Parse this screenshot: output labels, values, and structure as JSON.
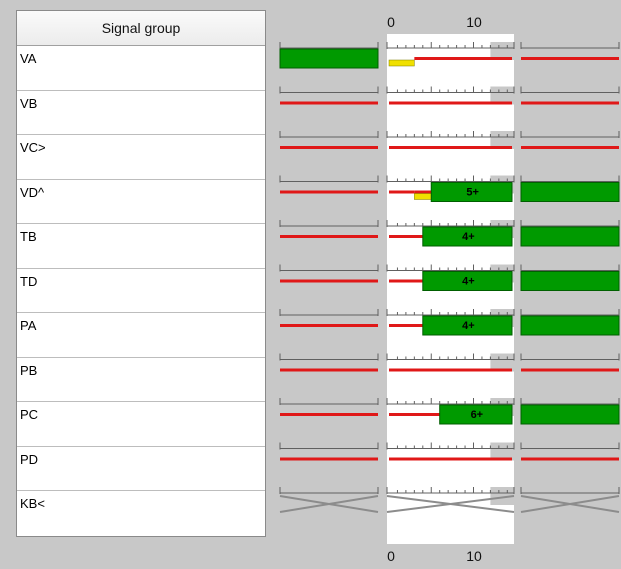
{
  "header": {
    "title": "Signal group"
  },
  "axis": {
    "top_ticks": [
      "0",
      "10"
    ],
    "bottom_ticks": [
      "0",
      "10"
    ]
  },
  "colors": {
    "green": "#009a00",
    "red": "#e01818",
    "yellow": "#f0e000",
    "grey_shade": "#c8c8c8",
    "cross": "#8c8c8c"
  },
  "signal_groups": [
    {
      "name": "VA",
      "left": "green",
      "mid": [
        {
          "kind": "yellow",
          "from": 0,
          "to": 3
        },
        {
          "kind": "red",
          "from": 3,
          "to": 15
        }
      ],
      "mid_label": "",
      "right": "red"
    },
    {
      "name": "VB",
      "left": "red",
      "mid": [
        {
          "kind": "red",
          "from": 0,
          "to": 15
        }
      ],
      "mid_label": "",
      "right": "red"
    },
    {
      "name": "VC>",
      "left": "red",
      "mid": [
        {
          "kind": "red",
          "from": 0,
          "to": 15
        }
      ],
      "mid_label": "",
      "right": "red"
    },
    {
      "name": "VD^",
      "left": "red",
      "mid": [
        {
          "kind": "red",
          "from": 0,
          "to": 3
        },
        {
          "kind": "red",
          "from": 3,
          "to": 5
        },
        {
          "kind": "yellow",
          "from": 3,
          "to": 5
        },
        {
          "kind": "green",
          "from": 5,
          "to": 15
        }
      ],
      "mid_label": "5+",
      "right": "green"
    },
    {
      "name": "TB",
      "left": "red",
      "mid": [
        {
          "kind": "red",
          "from": 0,
          "to": 4
        },
        {
          "kind": "green",
          "from": 4,
          "to": 15
        }
      ],
      "mid_label": "4+",
      "right": "green"
    },
    {
      "name": "TD",
      "left": "red",
      "mid": [
        {
          "kind": "red",
          "from": 0,
          "to": 4
        },
        {
          "kind": "green",
          "from": 4,
          "to": 15
        }
      ],
      "mid_label": "4+",
      "right": "green"
    },
    {
      "name": "PA",
      "left": "red",
      "mid": [
        {
          "kind": "red",
          "from": 0,
          "to": 4
        },
        {
          "kind": "green",
          "from": 4,
          "to": 15
        }
      ],
      "mid_label": "4+",
      "right": "green"
    },
    {
      "name": "PB",
      "left": "red",
      "mid": [
        {
          "kind": "red",
          "from": 0,
          "to": 15
        }
      ],
      "mid_label": "",
      "right": "red"
    },
    {
      "name": "PC",
      "left": "red",
      "mid": [
        {
          "kind": "red",
          "from": 0,
          "to": 6
        },
        {
          "kind": "green",
          "from": 6,
          "to": 15
        }
      ],
      "mid_label": "6+",
      "right": "green"
    },
    {
      "name": "PD",
      "left": "red",
      "mid": [
        {
          "kind": "red",
          "from": 0,
          "to": 15
        }
      ],
      "mid_label": "",
      "right": "red"
    },
    {
      "name": "KB<",
      "left": "cross",
      "mid": [
        {
          "kind": "cross",
          "from": 0,
          "to": 15
        }
      ],
      "mid_label": "",
      "right": "cross"
    }
  ]
}
